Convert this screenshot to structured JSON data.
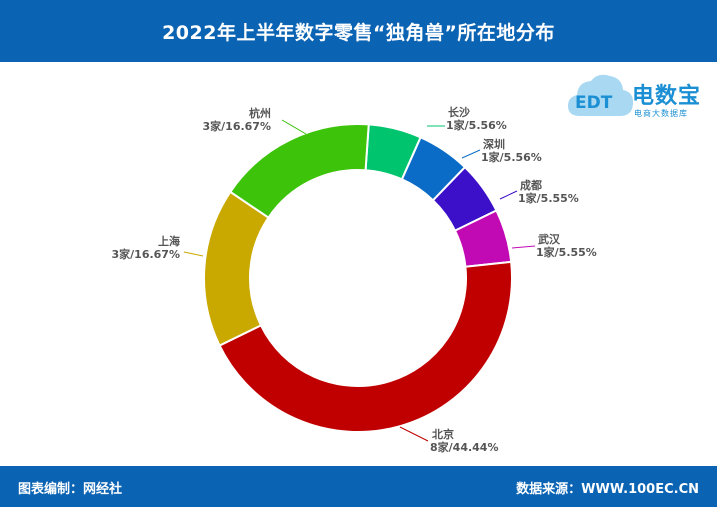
{
  "header": {
    "title": "2022年上半年数字零售“独角兽”所在地分布"
  },
  "footer": {
    "editor": "图表编制：网经社",
    "source": "数据来源：WWW.100EC.CN"
  },
  "logo": {
    "brand": "电数宝",
    "tagline": "电商大数据库",
    "mark": "EDT"
  },
  "chart_data": {
    "type": "pie",
    "title": "2022年上半年数字零售“独角兽”所在地分布",
    "donut": true,
    "slices": [
      {
        "label": "北京",
        "value": 8,
        "value_label": "8家/44.44%",
        "color": "#c00000"
      },
      {
        "label": "上海",
        "value": 3,
        "value_label": "3家/16.67%",
        "color": "#c9a800"
      },
      {
        "label": "杭州",
        "value": 3,
        "value_label": "3家/16.67%",
        "color": "#3cc30a"
      },
      {
        "label": "长沙",
        "value": 1,
        "value_label": "1家/5.56%",
        "color": "#00c46e"
      },
      {
        "label": "深圳",
        "value": 1,
        "value_label": "1家/5.56%",
        "color": "#0a6cc6"
      },
      {
        "label": "成都",
        "value": 1,
        "value_label": "1家/5.55%",
        "color": "#3b10c8"
      },
      {
        "label": "武汉",
        "value": 1,
        "value_label": "1家/5.55%",
        "color": "#c20ab4"
      }
    ]
  }
}
